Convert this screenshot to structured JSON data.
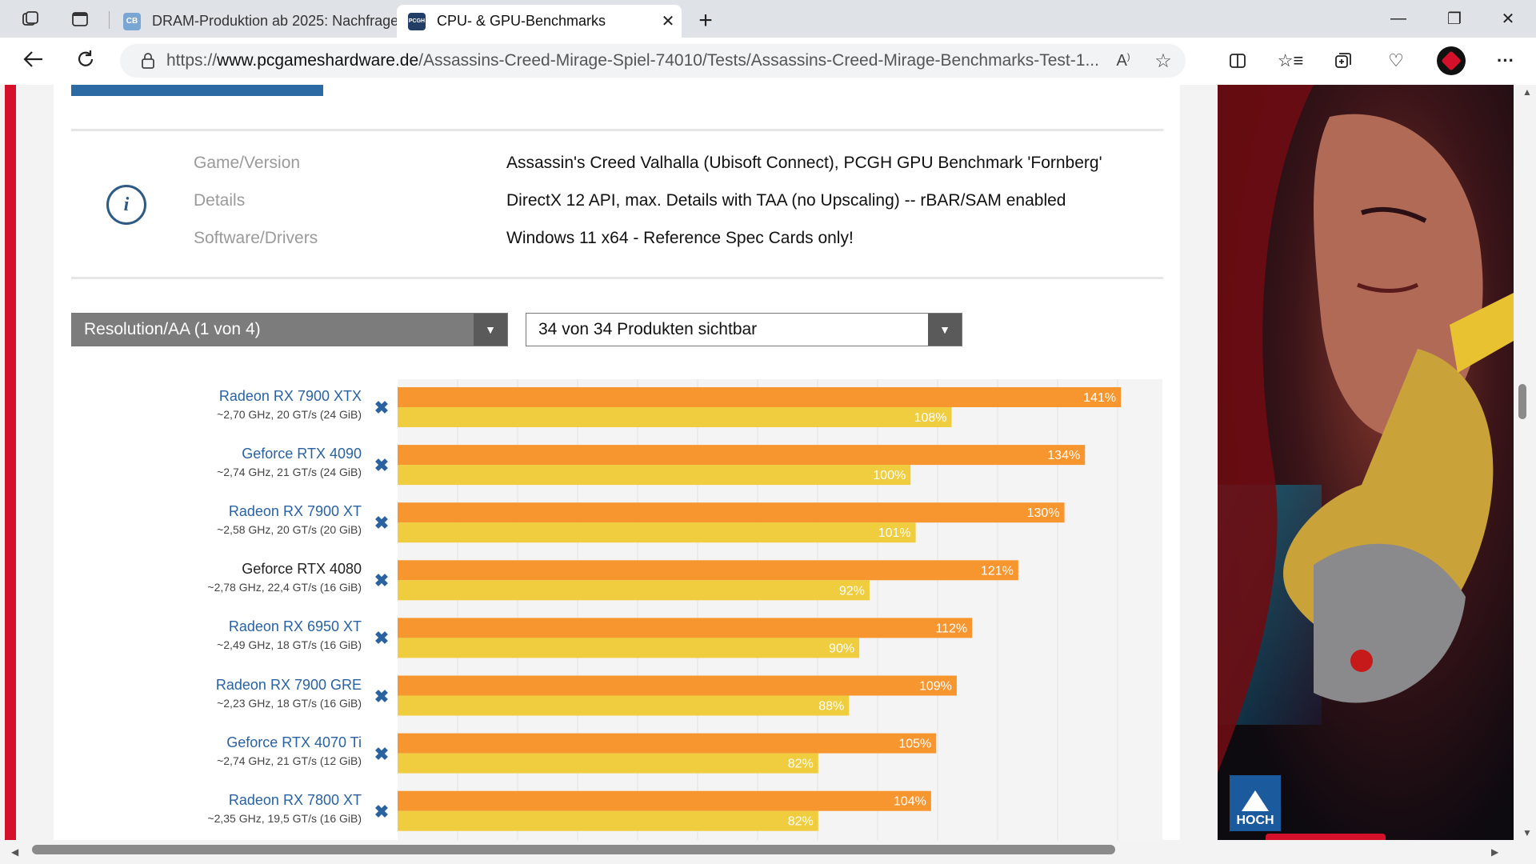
{
  "browser": {
    "tabs": [
      {
        "title": "DRAM-Produktion ab 2025: Nachfrage",
        "favicon": "CB",
        "active": false
      },
      {
        "title": "CPU- & GPU-Benchmarks",
        "favicon": "PCGH",
        "active": true
      }
    ],
    "new_tab_glyph": "+",
    "url_prefix": "https://",
    "url_domain": "www.pcgameshardware.de",
    "url_path": "/Assassins-Creed-Mirage-Spiel-74010/Tests/Assassins-Creed-Mirage-Benchmarks-Test-1..."
  },
  "info": {
    "rows": [
      {
        "label": "Game/Version",
        "value": "Assassin's Creed Valhalla (Ubisoft Connect), PCGH GPU Benchmark 'Fornberg'"
      },
      {
        "label": "Details",
        "value": "DirectX 12 API, max. Details with TAA (no Upscaling) -- rBAR/SAM enabled"
      },
      {
        "label": "Software/Drivers",
        "value": "Windows 11 x64 - Reference Spec Cards only!"
      }
    ],
    "icon_glyph": "i"
  },
  "controls": {
    "resolution_dropdown": "Resolution/AA (1 von 4)",
    "products_dropdown": "34 von 34 Produkten sichtbar",
    "remove_glyph": "✖"
  },
  "colors": {
    "series_primary": "#f7962f",
    "series_secondary": "#f0cd3e",
    "link": "#2a62a0",
    "accent_red": "#d5102a"
  },
  "chart_data": {
    "type": "bar",
    "orientation": "horizontal",
    "xlim": [
      0,
      150
    ],
    "categories": [
      "Radeon RX 7900 XTX",
      "Geforce RTX 4090",
      "Radeon RX 7900 XT",
      "Geforce RTX 4080",
      "Radeon RX 6950 XT",
      "Radeon RX 7900 GRE",
      "Geforce RTX 4070 Ti",
      "Radeon RX 7800 XT"
    ],
    "specs": [
      "~2,70 GHz, 20 GT/s (24 GiB)",
      "~2,74 GHz, 21 GT/s (24 GiB)",
      "~2,58 GHz, 20 GT/s (20 GiB)",
      "~2,78 GHz, 22,4 GT/s (16 GiB)",
      "~2,49 GHz, 18 GT/s (16 GiB)",
      "~2,23 GHz, 18 GT/s (16 GiB)",
      "~2,74 GHz, 21 GT/s (12 GiB)",
      "~2,35 GHz, 19,5 GT/s (16 GiB)"
    ],
    "series": [
      {
        "values": [
          141,
          134,
          130,
          121,
          112,
          109,
          105,
          104
        ],
        "labels": [
          "141%",
          "134%",
          "130%",
          "121%",
          "112%",
          "109%",
          "105%",
          "104%"
        ]
      },
      {
        "values": [
          108,
          100,
          101,
          92,
          90,
          88,
          82,
          82
        ],
        "labels": [
          "108%",
          "100%",
          "101%",
          "92%",
          "90%",
          "88%",
          "82%",
          "82%"
        ]
      }
    ]
  },
  "ad": {
    "back_to_top_label": "HOCH"
  }
}
